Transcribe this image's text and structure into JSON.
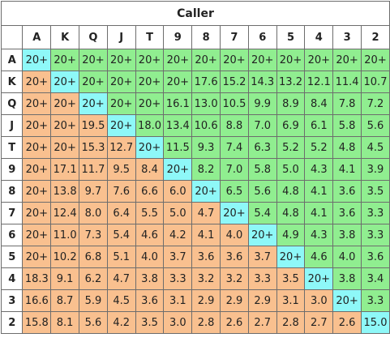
{
  "title": "Caller",
  "ranks": [
    "A",
    "K",
    "Q",
    "J",
    "T",
    "9",
    "8",
    "7",
    "6",
    "5",
    "4",
    "3",
    "2"
  ],
  "colors": {
    "pair": "#8ef8f8",
    "suited": "#90ee90",
    "offsuit": "#f9c08f",
    "border": "#6d6d6d"
  },
  "rows": [
    [
      "20+",
      "20+",
      "20+",
      "20+",
      "20+",
      "20+",
      "20+",
      "20+",
      "20+",
      "20+",
      "20+",
      "20+",
      "20+"
    ],
    [
      "20+",
      "20+",
      "20+",
      "20+",
      "20+",
      "20+",
      "17.6",
      "15.2",
      "14.3",
      "13.2",
      "12.1",
      "11.4",
      "10.7"
    ],
    [
      "20+",
      "20+",
      "20+",
      "20+",
      "20+",
      "16.1",
      "13.0",
      "10.5",
      "9.9",
      "8.9",
      "8.4",
      "7.8",
      "7.2"
    ],
    [
      "20+",
      "20+",
      "19.5",
      "20+",
      "18.0",
      "13.4",
      "10.6",
      "8.8",
      "7.0",
      "6.9",
      "6.1",
      "5.8",
      "5.6"
    ],
    [
      "20+",
      "20+",
      "15.3",
      "12.7",
      "20+",
      "11.5",
      "9.3",
      "7.4",
      "6.3",
      "5.2",
      "5.2",
      "4.8",
      "4.5"
    ],
    [
      "20+",
      "17.1",
      "11.7",
      "9.5",
      "8.4",
      "20+",
      "8.2",
      "7.0",
      "5.8",
      "5.0",
      "4.3",
      "4.1",
      "3.9"
    ],
    [
      "20+",
      "13.8",
      "9.7",
      "7.6",
      "6.6",
      "6.0",
      "20+",
      "6.5",
      "5.6",
      "4.8",
      "4.1",
      "3.6",
      "3.5"
    ],
    [
      "20+",
      "12.4",
      "8.0",
      "6.4",
      "5.5",
      "5.0",
      "4.7",
      "20+",
      "5.4",
      "4.8",
      "4.1",
      "3.6",
      "3.3"
    ],
    [
      "20+",
      "11.0",
      "7.3",
      "5.4",
      "4.6",
      "4.2",
      "4.1",
      "4.0",
      "20+",
      "4.9",
      "4.3",
      "3.8",
      "3.3"
    ],
    [
      "20+",
      "10.2",
      "6.8",
      "5.1",
      "4.0",
      "3.7",
      "3.6",
      "3.6",
      "3.7",
      "20+",
      "4.6",
      "4.0",
      "3.6"
    ],
    [
      "18.3",
      "9.1",
      "6.2",
      "4.7",
      "3.8",
      "3.3",
      "3.2",
      "3.2",
      "3.3",
      "3.5",
      "20+",
      "3.8",
      "3.4"
    ],
    [
      "16.6",
      "8.7",
      "5.9",
      "4.5",
      "3.6",
      "3.1",
      "2.9",
      "2.9",
      "2.9",
      "3.1",
      "3.0",
      "20+",
      "3.3"
    ],
    [
      "15.8",
      "8.1",
      "5.6",
      "4.2",
      "3.5",
      "3.0",
      "2.8",
      "2.6",
      "2.7",
      "2.8",
      "2.7",
      "2.6",
      "15.0"
    ]
  ]
}
